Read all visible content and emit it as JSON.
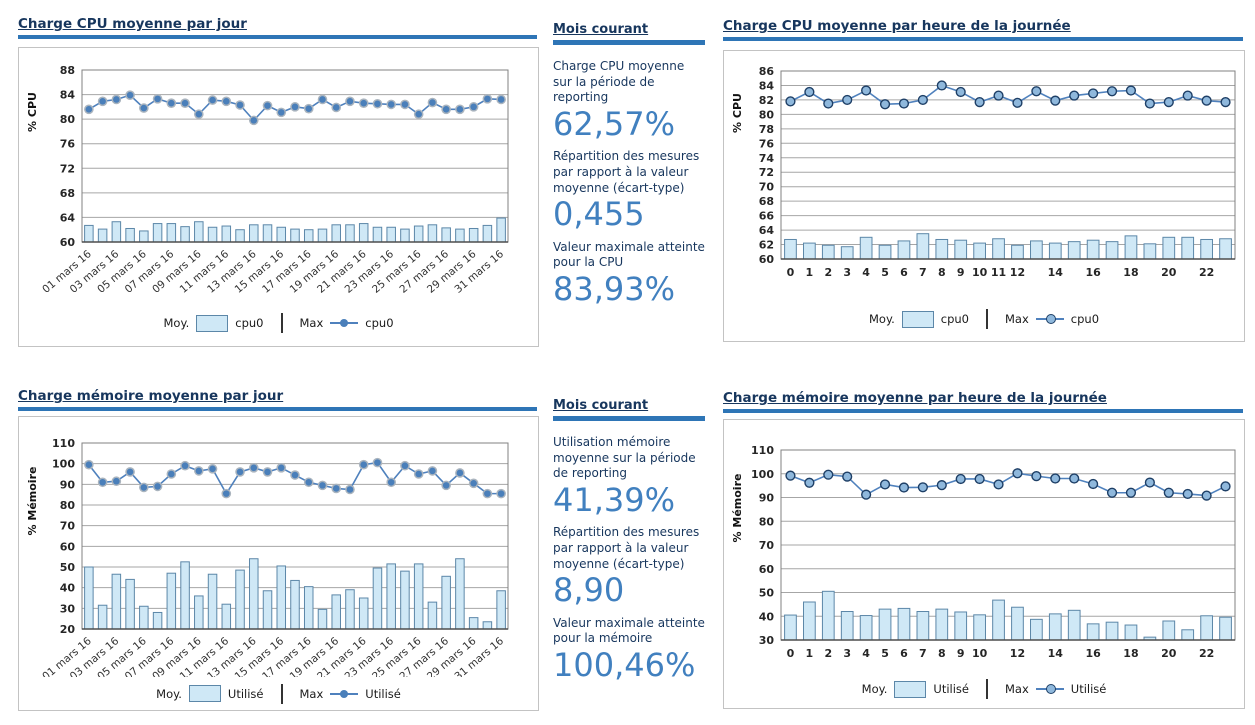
{
  "panels": [
    {
      "header": "Mois courant",
      "items": [
        {
          "label": "Charge CPU moyenne sur la période de reporting",
          "value": "62,57%"
        },
        {
          "label": "Répartition des mesures par rapport à la valeur moyenne (écart-type)",
          "value": "0,455"
        },
        {
          "label": "Valeur maximale atteinte pour la CPU",
          "value": "83,93%"
        }
      ]
    },
    {
      "header": "Mois courant",
      "items": [
        {
          "label": "Utilisation mémoire moyenne sur la période de reporting",
          "value": "41,39%"
        },
        {
          "label": "Répartition des mesures par rapport à la valeur moyenne (écart-type)",
          "value": "8,90"
        },
        {
          "label": "Valeur maximale atteinte pour la mémoire",
          "value": "100,46%"
        }
      ]
    }
  ],
  "chart_data": [
    {
      "type": "bar+line",
      "title": "Charge CPU  moyenne par jour",
      "ylabel": "% CPU",
      "ylim": [
        60,
        88
      ],
      "ytick_step": 4,
      "grid": true,
      "legend_position": "bottom",
      "categories": [
        "01 mars 16",
        "02 mars 16",
        "03 mars 16",
        "04 mars 16",
        "05 mars 16",
        "06 mars 16",
        "07 mars 16",
        "08 mars 16",
        "09 mars 16",
        "10 mars 16",
        "11 mars 16",
        "12 mars 16",
        "13 mars 16",
        "14 mars 16",
        "15 mars 16",
        "16 mars 16",
        "17 mars 16",
        "18 mars 16",
        "19 mars 16",
        "20 mars 16",
        "21 mars 16",
        "22 mars 16",
        "23 mars 16",
        "24 mars 16",
        "25 mars 16",
        "26 mars 16",
        "27 mars 16",
        "28 mars 16",
        "29 mars 16",
        "30 mars 16",
        "31 mars 16"
      ],
      "xtick_labels": [
        "01 mars 16",
        "",
        "03 mars 16",
        "",
        "05 mars 16",
        "",
        "07 mars 16",
        "",
        "09 mars 16",
        "",
        "11 mars 16",
        "",
        "13 mars 16",
        "",
        "15 mars 16",
        "",
        "17 mars 16",
        "",
        "19 mars 16",
        "",
        "21 mars 16",
        "",
        "23 mars 16",
        "",
        "25 mars 16",
        "",
        "27 mars 16",
        "",
        "29 mars 16",
        "",
        "31 mars 16"
      ],
      "series": [
        {
          "role": "Moy.",
          "name": "cpu0",
          "type": "bar",
          "values": [
            62.7,
            62.1,
            63.3,
            62.2,
            61.8,
            63.0,
            63.0,
            62.5,
            63.3,
            62.4,
            62.6,
            62.0,
            62.8,
            62.8,
            62.4,
            62.1,
            62.0,
            62.1,
            62.8,
            62.8,
            63.0,
            62.4,
            62.4,
            62.1,
            62.6,
            62.8,
            62.3,
            62.1,
            62.2,
            62.7,
            63.9
          ]
        },
        {
          "role": "Max",
          "name": "cpu0",
          "type": "line",
          "values": [
            81.6,
            82.9,
            83.2,
            83.9,
            81.8,
            83.3,
            82.6,
            82.6,
            80.8,
            83.1,
            82.9,
            82.3,
            79.8,
            82.2,
            81.1,
            82.0,
            81.7,
            83.2,
            81.9,
            82.9,
            82.6,
            82.5,
            82.4,
            82.4,
            80.8,
            82.7,
            81.6,
            81.6,
            82.0,
            83.3,
            83.2
          ]
        }
      ],
      "legend": {
        "avg_label": "Moy.",
        "avg_series": "cpu0",
        "max_label": "Max",
        "max_series": "cpu0"
      }
    },
    {
      "type": "bar+line",
      "title": "Charge CPU moyenne par heure de la journée",
      "ylabel": "% CPU",
      "ylim": [
        60,
        86
      ],
      "ytick_step": 2,
      "grid": true,
      "legend_position": "bottom",
      "categories": [
        "0",
        "1",
        "2",
        "3",
        "4",
        "5",
        "6",
        "7",
        "8",
        "9",
        "10",
        "11",
        "12",
        "13",
        "14",
        "15",
        "16",
        "17",
        "18",
        "19",
        "20",
        "21",
        "22",
        "23"
      ],
      "xtick_labels": [
        "0",
        "1",
        "2",
        "3",
        "4",
        "5",
        "6",
        "7",
        "8",
        "9",
        "10",
        "11",
        "12",
        "",
        "14",
        "",
        "16",
        "",
        "18",
        "",
        "20",
        "",
        "22",
        ""
      ],
      "series": [
        {
          "role": "Moy.",
          "name": "cpu0",
          "type": "bar",
          "values": [
            62.7,
            62.2,
            61.9,
            61.7,
            63.0,
            61.9,
            62.5,
            63.5,
            62.7,
            62.6,
            62.2,
            62.8,
            61.9,
            62.5,
            62.2,
            62.4,
            62.6,
            62.4,
            63.2,
            62.1,
            63.0,
            63.0,
            62.7,
            62.8
          ]
        },
        {
          "role": "Max",
          "name": "cpu0",
          "type": "line",
          "values": [
            81.8,
            83.1,
            81.5,
            82.0,
            83.3,
            81.4,
            81.5,
            82.0,
            84.0,
            83.1,
            81.7,
            82.6,
            81.6,
            83.2,
            81.9,
            82.6,
            82.9,
            83.2,
            83.3,
            81.5,
            81.7,
            82.6,
            81.9,
            81.7
          ]
        }
      ],
      "legend": {
        "avg_label": "Moy.",
        "avg_series": "cpu0",
        "max_label": "Max",
        "max_series": "cpu0"
      }
    },
    {
      "type": "bar+line",
      "title": "Charge mémoire moyenne par jour",
      "ylabel": "% Mémoire",
      "ylim": [
        20,
        110
      ],
      "ytick_step": 10,
      "grid": true,
      "legend_position": "bottom",
      "categories": [
        "01 mars 16",
        "02 mars 16",
        "03 mars 16",
        "04 mars 16",
        "05 mars 16",
        "06 mars 16",
        "07 mars 16",
        "08 mars 16",
        "09 mars 16",
        "10 mars 16",
        "11 mars 16",
        "12 mars 16",
        "13 mars 16",
        "14 mars 16",
        "15 mars 16",
        "16 mars 16",
        "17 mars 16",
        "18 mars 16",
        "19 mars 16",
        "20 mars 16",
        "21 mars 16",
        "22 mars 16",
        "23 mars 16",
        "24 mars 16",
        "25 mars 16",
        "26 mars 16",
        "27 mars 16",
        "28 mars 16",
        "29 mars 16",
        "30 mars 16",
        "31 mars 16"
      ],
      "xtick_labels": [
        "01 mars 16",
        "",
        "03 mars 16",
        "",
        "05 mars 16",
        "",
        "07 mars 16",
        "",
        "09 mars 16",
        "",
        "11 mars 16",
        "",
        "13 mars 16",
        "",
        "15 mars 16",
        "",
        "17 mars 16",
        "",
        "19 mars 16",
        "",
        "21 mars 16",
        "",
        "23 mars 16",
        "",
        "25 mars 16",
        "",
        "27 mars 16",
        "",
        "29 mars 16",
        "",
        "31 mars 16"
      ],
      "series": [
        {
          "role": "Moy.",
          "name": "Utilisé",
          "type": "bar",
          "values": [
            50,
            31.5,
            46.5,
            44,
            31,
            28,
            47,
            52.5,
            36,
            46.5,
            32,
            48.5,
            54,
            38.5,
            50.5,
            43.5,
            40.5,
            29.5,
            36.5,
            39,
            35,
            49.5,
            51.5,
            48,
            51.5,
            33,
            45.5,
            54,
            25.5,
            23.5,
            38.5
          ]
        },
        {
          "role": "Max",
          "name": "Utilisé",
          "type": "line",
          "values": [
            99.5,
            91,
            91.5,
            96,
            88.5,
            89,
            95,
            99,
            96.5,
            97.5,
            85.5,
            96,
            98,
            96,
            98,
            94.5,
            91,
            89.5,
            88,
            87.5,
            99.5,
            100.5,
            91,
            99,
            95,
            96.5,
            89.5,
            95.5,
            90.5,
            85.5,
            85.5
          ]
        }
      ],
      "legend": {
        "avg_label": "Moy.",
        "avg_series": "Utilisé",
        "max_label": "Max",
        "max_series": "Utilisé"
      }
    },
    {
      "type": "bar+line",
      "title": "Charge mémoire moyenne par heure de la journée",
      "ylabel": "% Mémoire",
      "ylim": [
        30,
        110
      ],
      "ytick_step": 10,
      "grid": true,
      "legend_position": "bottom",
      "categories": [
        "0",
        "1",
        "2",
        "3",
        "4",
        "5",
        "6",
        "7",
        "8",
        "9",
        "10",
        "11",
        "12",
        "13",
        "14",
        "15",
        "16",
        "17",
        "18",
        "19",
        "20",
        "21",
        "22",
        "23"
      ],
      "xtick_labels": [
        "0",
        "1",
        "2",
        "3",
        "4",
        "5",
        "6",
        "7",
        "8",
        "9",
        "10",
        "",
        "12",
        "",
        "14",
        "",
        "16",
        "",
        "18",
        "",
        "20",
        "",
        "22",
        ""
      ],
      "series": [
        {
          "role": "Moy.",
          "name": "Utilisé",
          "type": "bar",
          "values": [
            40.5,
            46,
            50.5,
            42,
            40.3,
            43,
            43.3,
            42,
            43,
            41.8,
            40.6,
            46.8,
            43.8,
            38.7,
            41,
            42.5,
            36.8,
            37.5,
            36.3,
            31.2,
            38,
            34.3,
            40.2,
            39.6
          ]
        },
        {
          "role": "Max",
          "name": "Utilisé",
          "type": "line",
          "values": [
            99.2,
            96.2,
            99.6,
            98.8,
            91.2,
            95.5,
            94.2,
            94.3,
            95.2,
            97.8,
            97.8,
            95.5,
            100.2,
            99,
            98,
            98,
            95.7,
            92,
            92,
            96.3,
            92,
            91.5,
            90.8,
            94.7
          ]
        }
      ],
      "legend": {
        "avg_label": "Moy.",
        "avg_series": "Utilisé",
        "max_label": "Max",
        "max_series": "Utilisé"
      }
    }
  ],
  "colors": {
    "title_navy": "#17365d",
    "rule_blue": "#2e75b6",
    "value_blue": "#4180bf",
    "bar_fill": "#cfe8f6",
    "bar_border": "#5c87a8",
    "line_blue": "#4f81bd",
    "grid_gray": "#a6a6a6"
  }
}
